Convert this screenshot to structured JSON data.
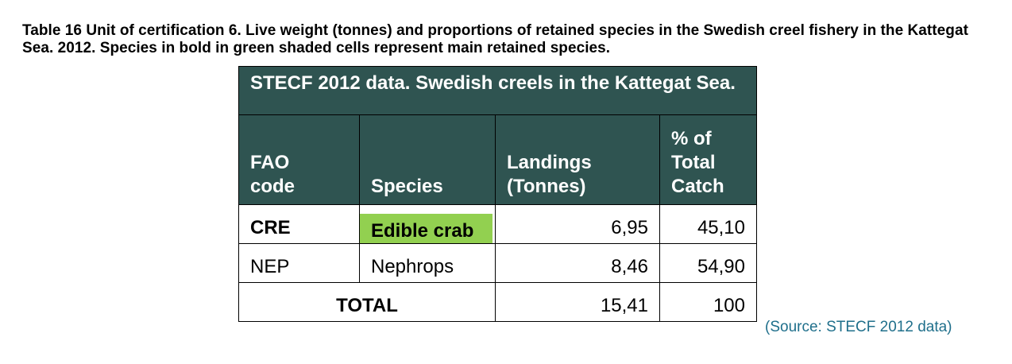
{
  "caption": "Table 16 Unit of certification 6. Live weight (tonnes) and proportions of retained species in the Swedish creel fishery in the Kattegat Sea.  2012. Species in bold in green shaded cells represent main retained species.",
  "table": {
    "title": "STECF 2012 data. Swedish creels in the Kattegat Sea.",
    "headers": {
      "fao": "FAO code",
      "species": "Species",
      "landings": "Landings (Tonnes)",
      "percent": "% of Total Catch"
    },
    "rows": [
      {
        "fao": "CRE",
        "species": "Edible crab",
        "landings": "6,95",
        "percent": "45,10"
      },
      {
        "fao": "NEP",
        "species": "Nephrops",
        "landings": "8,46",
        "percent": "54,90"
      }
    ],
    "total": {
      "label": "TOTAL",
      "landings": "15,41",
      "percent": "100"
    }
  },
  "source": "(Source: STECF 2012 data)",
  "colors": {
    "header_bg": "#2f5451",
    "main_species_bg": "#92d050",
    "source_text": "#1f6f8b"
  }
}
